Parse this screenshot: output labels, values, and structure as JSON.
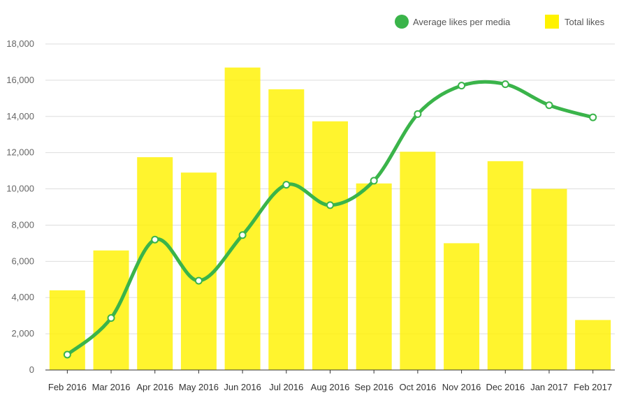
{
  "colors": {
    "bar": "#FFF200",
    "bar_opacity": 0.82,
    "line": "#3AB44A",
    "marker_fill": "#ffffff",
    "grid": "#dddddd",
    "axis": "#333333"
  },
  "chart_data": {
    "type": "bar",
    "title": "",
    "xlabel": "",
    "ylabel": "",
    "ylim": [
      0,
      18000
    ],
    "yticks": [
      0,
      2000,
      4000,
      6000,
      8000,
      10000,
      12000,
      14000,
      16000,
      18000
    ],
    "ytick_labels": [
      "0",
      "2,000",
      "4,000",
      "6,000",
      "8,000",
      "10,000",
      "12,000",
      "14,000",
      "16,000",
      "18,000"
    ],
    "grid": true,
    "legend_position": "top-right",
    "categories": [
      "Feb 2016",
      "Mar 2016",
      "Apr 2016",
      "May 2016",
      "Jun 2016",
      "Jul 2016",
      "Aug 2016",
      "Sep 2016",
      "Oct 2016",
      "Nov 2016",
      "Dec 2016",
      "Jan 2017",
      "Feb 2017"
    ],
    "series": [
      {
        "name": "Average likes per media",
        "type": "line",
        "smooth": true,
        "values": [
          850,
          2870,
          7200,
          4930,
          7450,
          10230,
          9100,
          10450,
          14130,
          15700,
          15780,
          14620,
          13950
        ]
      },
      {
        "name": "Total likes",
        "type": "bar",
        "values": [
          4400,
          6600,
          11750,
          10900,
          16700,
          15500,
          13730,
          10300,
          12050,
          7000,
          11530,
          10000,
          2760
        ]
      }
    ]
  }
}
